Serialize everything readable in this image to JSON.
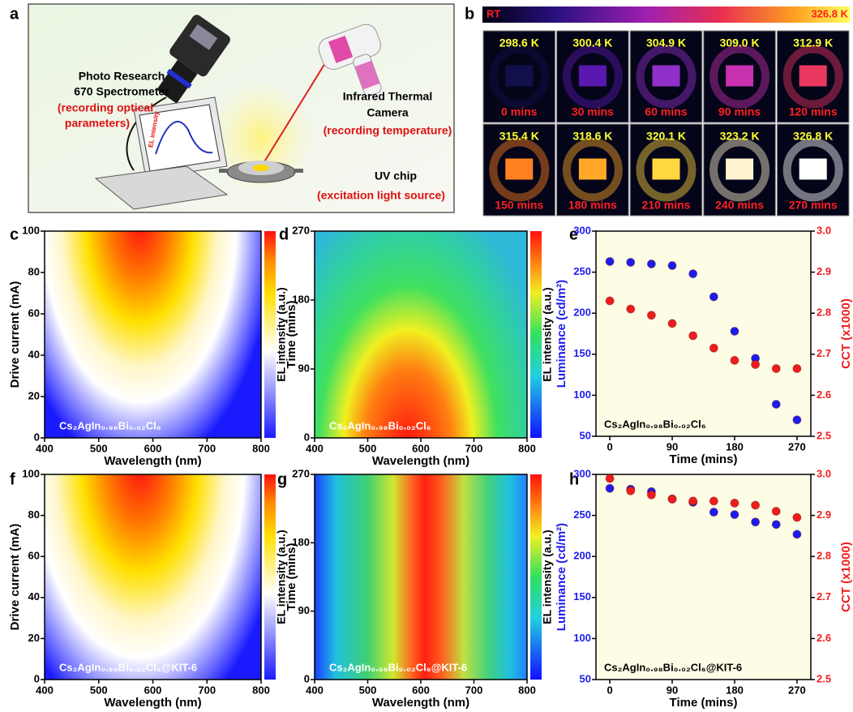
{
  "panel_labels": [
    "a",
    "b",
    "c",
    "d",
    "e",
    "f",
    "g",
    "h"
  ],
  "setup": {
    "spectrometer": [
      "Photo Research",
      "670 Spectrometer"
    ],
    "spectrometer_note": [
      "(recording optical",
      "parameters)"
    ],
    "camera": [
      "Infrared Thermal",
      "Camera"
    ],
    "camera_note": "(recording temperature)",
    "chip": "UV chip",
    "chip_note": "(excitation light source)",
    "screen_label": "EL intensity"
  },
  "thermal": {
    "scale_min": "RT",
    "scale_max": "326.8 K",
    "tiles": [
      {
        "temperature": "298.6 K",
        "time": "0 mins",
        "color": "#12104a"
      },
      {
        "temperature": "300.4 K",
        "time": "30 mins",
        "color": "#5a18b0"
      },
      {
        "temperature": "304.9 K",
        "time": "60 mins",
        "color": "#9030c8"
      },
      {
        "temperature": "309.0 K",
        "time": "90 mins",
        "color": "#c830b0"
      },
      {
        "temperature": "312.9 K",
        "time": "120 mins",
        "color": "#e83860"
      },
      {
        "temperature": "315.4 K",
        "time": "150 mins",
        "color": "#ff8020"
      },
      {
        "temperature": "318.6 K",
        "time": "180 mins",
        "color": "#ffa828"
      },
      {
        "temperature": "320.1 K",
        "time": "210 mins",
        "color": "#ffd840"
      },
      {
        "temperature": "323.2 K",
        "time": "240 mins",
        "color": "#fff4d0"
      },
      {
        "temperature": "326.8 K",
        "time": "270 mins",
        "color": "#ffffff"
      }
    ]
  },
  "chart_data": [
    {
      "type": "heatmap",
      "xlabel": "Wavelength (nm)",
      "ylabel": "Drive current (mA)",
      "colorbar_label": "EL intensity (a.u.)",
      "annotation": "Cs₂AgIn₀.₉₈Bi₀.₀₂Cl₆",
      "colormap": "hot",
      "xlim": [
        400,
        800
      ],
      "xticks": [
        400,
        500,
        600,
        700,
        800
      ],
      "ylim": [
        0,
        100
      ],
      "yticks": [
        0,
        20,
        40,
        60,
        80,
        100
      ]
    },
    {
      "type": "heatmap",
      "xlabel": "Wavelength (nm)",
      "ylabel": "Time (mins)",
      "colorbar_label": "EL intensity (a.u.)",
      "annotation": "Cs₂AgIn₀.₉₈Bi₀.₀₂Cl₆",
      "colormap": "jet",
      "xlim": [
        400,
        800
      ],
      "xticks": [
        400,
        500,
        600,
        700,
        800
      ],
      "ylim": [
        0,
        270
      ],
      "yticks": [
        0,
        90,
        180,
        270
      ]
    },
    {
      "type": "scatter",
      "xlabel": "Time (mins)",
      "ylabel": "Luminance (cd/m²)",
      "y2label": "CCT (x1000)",
      "annotation": "Cs₂AgIn₀.₉₈Bi₀.₀₂Cl₆",
      "background": "#fdfde6",
      "x": [
        0,
        30,
        60,
        90,
        120,
        150,
        180,
        210,
        240,
        270
      ],
      "xlim": [
        -20,
        290
      ],
      "xticks": [
        0,
        90,
        180,
        270
      ],
      "ylim": [
        50,
        300
      ],
      "yticks": [
        50,
        100,
        150,
        200,
        250,
        300
      ],
      "y2lim": [
        2.5,
        3
      ],
      "y2ticks": [
        2.5,
        2.6,
        2.7,
        2.8,
        2.9,
        {
          "value": 3,
          "label": "3.0"
        }
      ],
      "series": [
        {
          "color": "#1c1cf0",
          "values": [
            263,
            262,
            260,
            258,
            248,
            220,
            178,
            145,
            89,
            70
          ]
        },
        {
          "color": "#f01c1c",
          "axis": "y2",
          "values": [
            2.83,
            2.81,
            2.795,
            2.775,
            2.745,
            2.715,
            2.685,
            2.675,
            2.665,
            2.665
          ]
        }
      ]
    },
    {
      "type": "heatmap",
      "xlabel": "Wavelength (nm)",
      "ylabel": "Drive current (mA)",
      "colorbar_label": "EL intensity (a.u.)",
      "annotation": "Cs₂AgIn₀.₉₈Bi₀.₀₂Cl₆@KIT-6",
      "colormap": "hot",
      "xlim": [
        400,
        800
      ],
      "xticks": [
        400,
        500,
        600,
        700,
        800
      ],
      "ylim": [
        0,
        100
      ],
      "yticks": [
        0,
        20,
        40,
        60,
        80,
        100
      ]
    },
    {
      "type": "heatmap",
      "xlabel": "Wavelength (nm)",
      "ylabel": "Time (mins)",
      "colorbar_label": "EL intensity (a.u.)",
      "annotation": "Cs₂AgIn₀.₉₈Bi₀.₀₂Cl₆@KIT-6",
      "colormap": "jet",
      "xlim": [
        400,
        800
      ],
      "xticks": [
        400,
        500,
        600,
        700,
        800
      ],
      "ylim": [
        0,
        270
      ],
      "yticks": [
        0,
        90,
        180,
        270
      ]
    },
    {
      "type": "scatter",
      "xlabel": "Time (mins)",
      "ylabel": "Luminance (cd/m²)",
      "y2label": "CCT (x1000)",
      "annotation": "Cs₂AgIn₀.₉₈Bi₀.₀₂Cl₆@KIT-6",
      "background": "#fdfde6",
      "x": [
        0,
        30,
        60,
        90,
        120,
        150,
        180,
        210,
        240,
        270
      ],
      "xlim": [
        -20,
        290
      ],
      "xticks": [
        0,
        90,
        180,
        270
      ],
      "ylim": [
        50,
        300
      ],
      "yticks": [
        50,
        100,
        150,
        200,
        250,
        300
      ],
      "y2lim": [
        2.5,
        3
      ],
      "y2ticks": [
        2.5,
        2.6,
        2.7,
        2.8,
        2.9,
        {
          "value": 3,
          "label": "3.0"
        }
      ],
      "series": [
        {
          "color": "#1c1cf0",
          "values": [
            283,
            282,
            279,
            270,
            266,
            254,
            251,
            242,
            239,
            227
          ]
        },
        {
          "color": "#f01c1c",
          "axis": "y2",
          "values": [
            2.99,
            2.96,
            2.95,
            2.94,
            2.935,
            2.935,
            2.93,
            2.925,
            2.91,
            2.895
          ]
        }
      ]
    }
  ]
}
